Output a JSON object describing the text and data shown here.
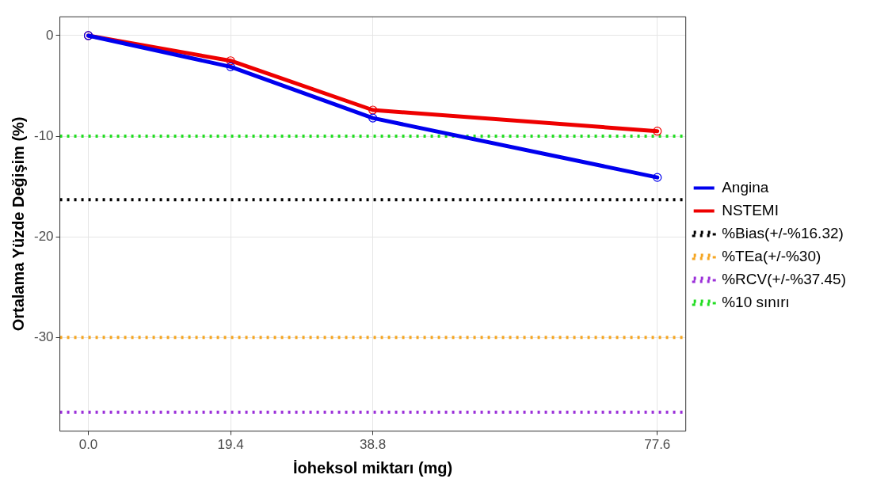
{
  "chart_data": {
    "type": "line",
    "xlabel": "İoheksol miktarı (mg)",
    "ylabel": "Ortalama Yüzde Değişim (%)",
    "x": [
      0,
      19.4,
      38.8,
      77.6
    ],
    "series": [
      {
        "name": "Angina",
        "color": "#0000ee",
        "values": [
          0,
          -3.1,
          -8.2,
          -14.1
        ]
      },
      {
        "name": "NSTEMI",
        "color": "#ee0000",
        "values": [
          0,
          -2.5,
          -7.4,
          -9.5
        ]
      }
    ],
    "ref_lines": [
      {
        "axis": "y",
        "value": -16.32,
        "label": "%Bias(+/-%16.32)",
        "color": "#000000",
        "line_style": "dotted"
      },
      {
        "axis": "y",
        "value": -30,
        "label": "%TEa(+/-%30)",
        "color": "#f5a623",
        "line_style": "dotted"
      },
      {
        "axis": "y",
        "value": -37.45,
        "label": "%RCV(+/-%37.45)",
        "color": "#9b30d9",
        "line_style": "dotted"
      },
      {
        "axis": "y",
        "value": -10,
        "label": "%10 sınırı",
        "color": "#22dd22",
        "line_style": "dotted"
      }
    ],
    "xlim": [
      -3.88,
      81.48
    ],
    "ylim": [
      -39.32,
      1.87
    ],
    "xticks": [
      {
        "value": 0,
        "label": "0.0"
      },
      19.4,
      38.8,
      77.6
    ],
    "yticks": [
      0,
      -10,
      -20,
      -30
    ],
    "grid": true,
    "legend": "right",
    "marker": "circle",
    "line_style": "solid"
  }
}
